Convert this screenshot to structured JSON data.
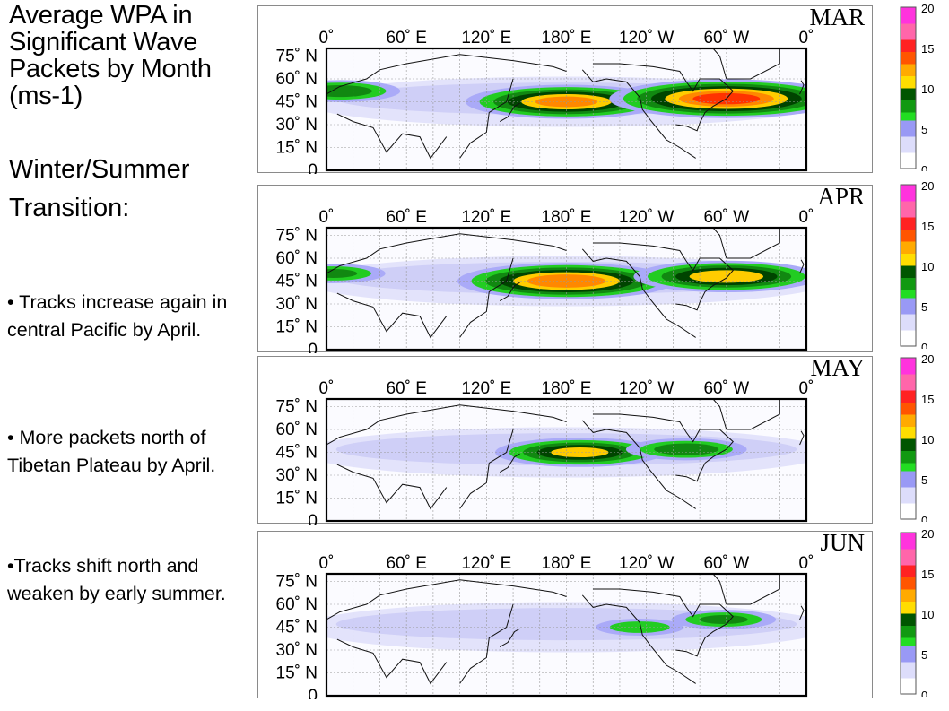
{
  "slide": {
    "title": "Average WPA in Significant Wave Packets by Month (ms-1)",
    "subtitle": "Winter/Summer Transition:",
    "bullets": [
      "• Tracks increase again in central Pacific by April.",
      "• More packets north of Tibetan Plateau by April.",
      "•Tracks shift north and weaken by early summer."
    ]
  },
  "chart_data": [
    {
      "type": "heatmap",
      "title": "MAR",
      "x_ticks": [
        "0˚",
        "60˚ E",
        "120˚ E",
        "180˚ E",
        "120˚ W",
        "60˚ W",
        "0˚"
      ],
      "y_ticks": [
        "75˚ N",
        "60˚ N",
        "45˚ N",
        "30˚ N",
        "15˚ N",
        "0"
      ],
      "colorbar": {
        "ticks": [
          "0",
          "5",
          "10",
          "15",
          "20"
        ],
        "range": [
          0,
          20
        ]
      },
      "features": [
        {
          "lon": 180,
          "lat": 45,
          "value": 12
        },
        {
          "lon": 300,
          "lat": 47,
          "value": 14
        },
        {
          "lon": 10,
          "lat": 52,
          "value": 7
        }
      ]
    },
    {
      "type": "heatmap",
      "title": "APR",
      "x_ticks": [
        "0˚",
        "60˚ E",
        "120˚ E",
        "180˚ E",
        "120˚ W",
        "60˚ W",
        "0˚"
      ],
      "y_ticks": [
        "75˚ N",
        "60˚ N",
        "45˚ N",
        "30˚ N",
        "15˚ N",
        "0"
      ],
      "colorbar": {
        "ticks": [
          "0",
          "5",
          "10",
          "15",
          "20"
        ],
        "range": [
          0,
          20
        ]
      },
      "features": [
        {
          "lon": 180,
          "lat": 45,
          "value": 13
        },
        {
          "lon": 300,
          "lat": 48,
          "value": 11
        },
        {
          "lon": 5,
          "lat": 50,
          "value": 6
        }
      ]
    },
    {
      "type": "heatmap",
      "title": "MAY",
      "x_ticks": [
        "0˚",
        "60˚ E",
        "120˚ E",
        "180˚ E",
        "120˚ W",
        "60˚ W",
        "0˚"
      ],
      "y_ticks": [
        "75˚ N",
        "60˚ N",
        "45˚ N",
        "30˚ N",
        "15˚ N",
        "0"
      ],
      "colorbar": {
        "ticks": [
          "0",
          "5",
          "10",
          "15",
          "20"
        ],
        "range": [
          0,
          20
        ]
      },
      "features": [
        {
          "lon": 190,
          "lat": 45,
          "value": 10
        },
        {
          "lon": 270,
          "lat": 47,
          "value": 7
        }
      ]
    },
    {
      "type": "heatmap",
      "title": "JUN",
      "x_ticks": [
        "0˚",
        "60˚ E",
        "120˚ E",
        "180˚ E",
        "120˚ W",
        "60˚ W",
        "0˚"
      ],
      "y_ticks": [
        "75˚ N",
        "60˚ N",
        "45˚ N",
        "30˚ N",
        "15˚ N",
        "0"
      ],
      "colorbar": {
        "ticks": [
          "0",
          "5",
          "10",
          "15",
          "20"
        ],
        "range": [
          0,
          20
        ]
      },
      "features": [
        {
          "lon": 298,
          "lat": 50,
          "value": 6
        },
        {
          "lon": 235,
          "lat": 45,
          "value": 5
        }
      ]
    }
  ]
}
